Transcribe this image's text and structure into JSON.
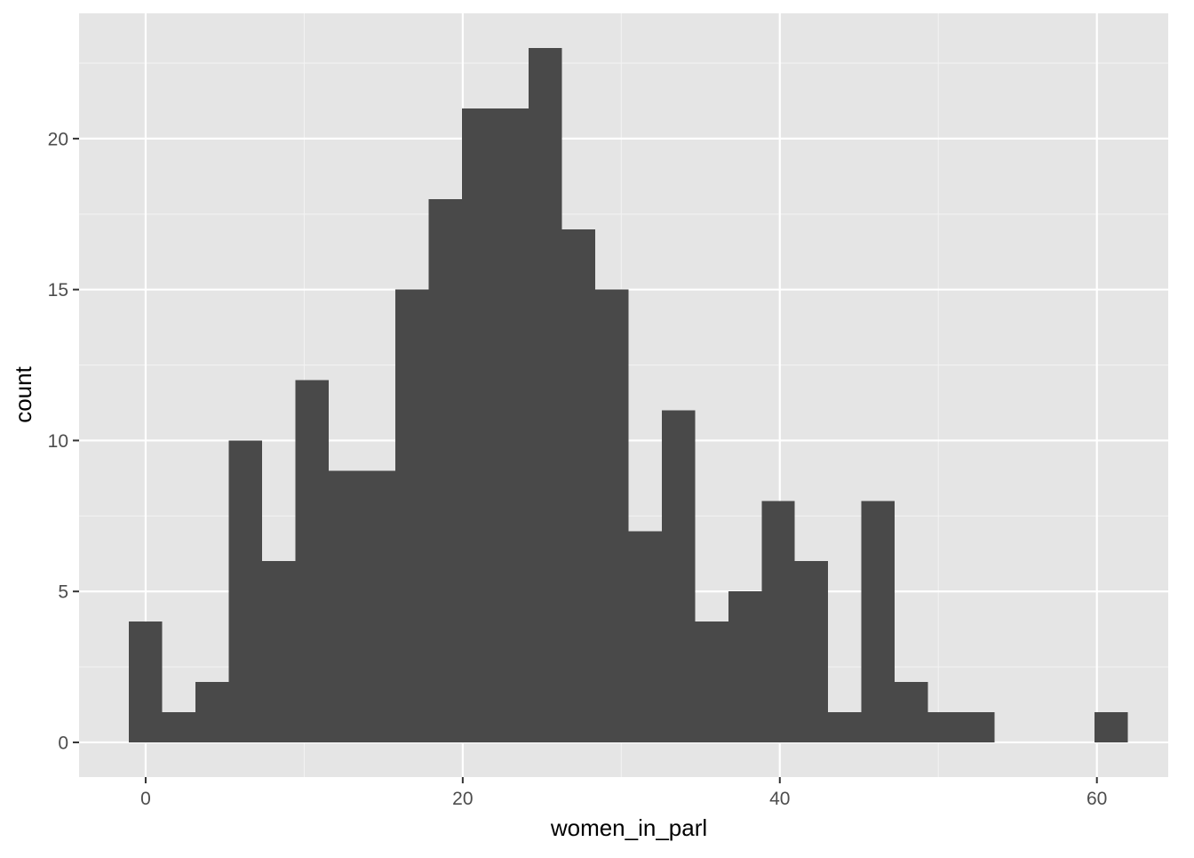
{
  "chart_data": {
    "type": "bar",
    "subtype": "histogram",
    "title": "",
    "xlabel": "women_in_parl",
    "ylabel": "count",
    "xlim": [
      -4.2,
      64.5
    ],
    "ylim": [
      -1.15,
      24.15
    ],
    "x_ticks": [
      0,
      20,
      40,
      60
    ],
    "x_tick_labels": [
      "0",
      "20",
      "40",
      "60"
    ],
    "y_ticks": [
      0,
      5,
      10,
      15,
      20
    ],
    "y_tick_labels": [
      "0",
      "5",
      "10",
      "15",
      "20"
    ],
    "bin_width": 2.1,
    "bin_start": -1.05,
    "values": [
      4,
      1,
      2,
      10,
      6,
      12,
      9,
      9,
      15,
      18,
      21,
      21,
      23,
      17,
      15,
      7,
      11,
      4,
      5,
      8,
      6,
      1,
      8,
      2,
      1,
      1,
      0,
      0,
      0,
      1
    ],
    "grid": true,
    "legend": "none",
    "colors": {
      "panel_background": "#e5e5e5",
      "grid_major": "#ffffff",
      "grid_minor": "#f2f2f2",
      "bar_fill": "#494949",
      "tick_text": "#4d4d4d",
      "tick_mark": "#333333",
      "axis_title": "#000000"
    }
  }
}
